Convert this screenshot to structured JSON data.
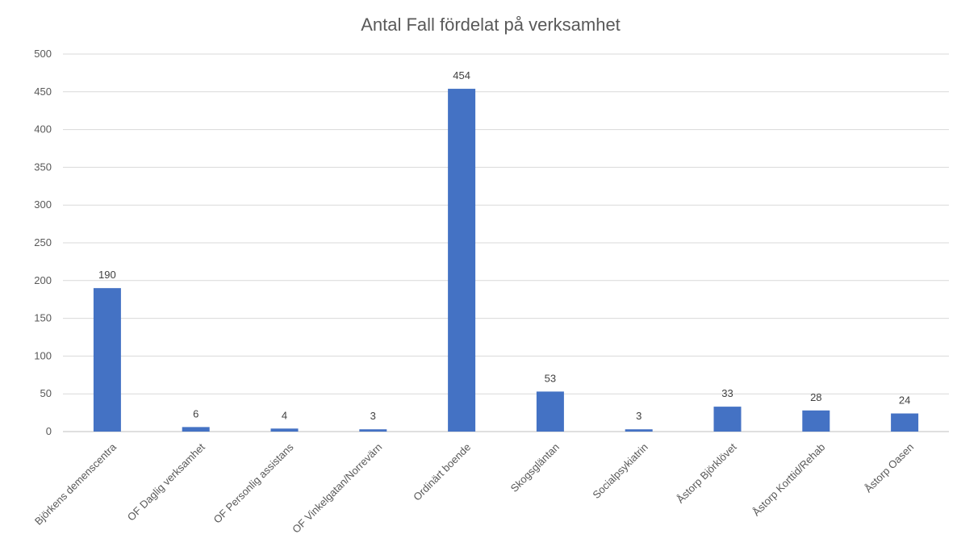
{
  "chart_data": {
    "type": "bar",
    "title": "Antal Fall fördelat på verksamhet",
    "categories": [
      "Björkens demenscentra",
      "OF Daglig verksamhet",
      "OF Personlig assistans",
      "OF Vinkelgatan/Norrevärn",
      "Ordinärt boende",
      "Skogsgläntan",
      "Socialpsykiatrin",
      "Åstorp Björklövet",
      "Åstorp Korttid/Rehab",
      "Åstorp Oasen"
    ],
    "values": [
      190,
      6,
      4,
      3,
      454,
      53,
      3,
      33,
      28,
      24
    ],
    "xlabel": "",
    "ylabel": "",
    "ylim": [
      0,
      500
    ],
    "yticks": [
      0,
      50,
      100,
      150,
      200,
      250,
      300,
      350,
      400,
      450,
      500
    ],
    "grid": true,
    "legend": "none",
    "colors": {
      "bar": "#4472c4"
    }
  }
}
